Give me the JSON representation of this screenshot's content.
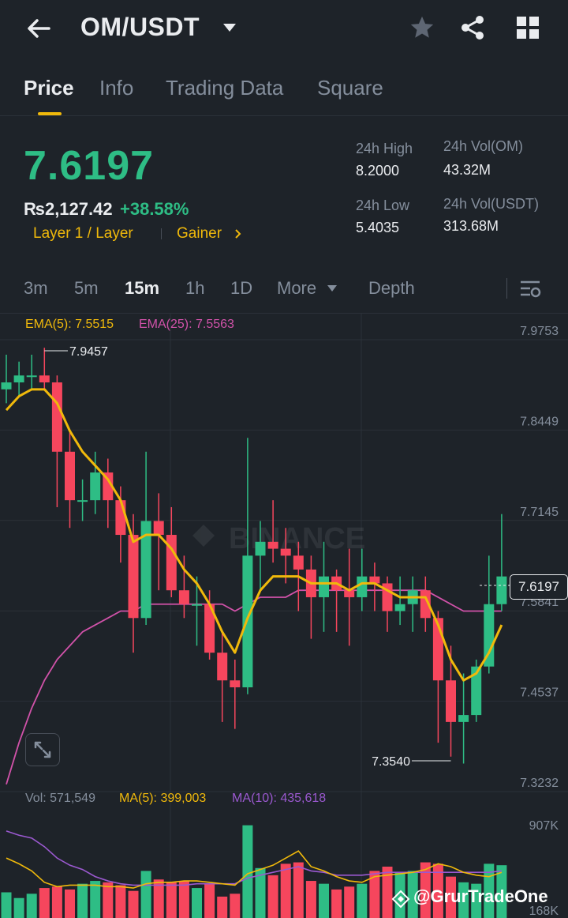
{
  "header": {
    "pair": "OM/USDT"
  },
  "tabs": [
    "Price",
    "Info",
    "Trading Data",
    "Square"
  ],
  "summary": {
    "last_price": "7.6197",
    "fiat_price": "₨2,127.42",
    "change": "+38.58%",
    "tag_1": "Layer 1 / Layer",
    "tag_2": "Gainer",
    "high_label": "24h High",
    "high_value": "8.2000",
    "low_label": "24h Low",
    "low_value": "5.4035",
    "vol_base_label": "24h Vol(OM)",
    "vol_base_value": "43.32M",
    "vol_quote_label": "24h Vol(USDT)",
    "vol_quote_value": "313.68M"
  },
  "timeframes": [
    "3m",
    "5m",
    "15m",
    "1h",
    "1D",
    "More",
    "Depth"
  ],
  "indicators": {
    "ema5": "EMA(5): 7.5515",
    "ema25": "EMA(25): 7.5563",
    "vol": "Vol: 571,549",
    "ma5": "MA(5): 399,003",
    "ma10": "MA(10): 435,618"
  },
  "colors": {
    "up": "#2ebd85",
    "down": "#f6465d",
    "ema5": "#f0b90b",
    "ema25": "#d152a9",
    "ma10": "#9b59d0",
    "accent": "#f0b90b"
  },
  "watermark": "@GrurTradeOne",
  "chart_data": {
    "type": "candlestick",
    "y_axis_ticks": [
      "7.9753",
      "7.8449",
      "7.7145",
      "7.5841",
      "7.4537",
      "7.3232"
    ],
    "volume_axis_ticks": [
      "907K",
      "168K"
    ],
    "high_marker": "7.9457",
    "low_marker": "7.3540",
    "current_price_label": "7.6197",
    "ylim": [
      7.3232,
      7.9753
    ],
    "candles": [
      {
        "o": 7.89,
        "h": 7.94,
        "l": 7.87,
        "c": 7.9
      },
      {
        "o": 7.9,
        "h": 7.93,
        "l": 7.88,
        "c": 7.91
      },
      {
        "o": 7.91,
        "h": 7.94,
        "l": 7.89,
        "c": 7.91
      },
      {
        "o": 7.91,
        "h": 7.95,
        "l": 7.89,
        "c": 7.9
      },
      {
        "o": 7.9,
        "h": 7.91,
        "l": 7.72,
        "c": 7.8
      },
      {
        "o": 7.8,
        "h": 7.83,
        "l": 7.69,
        "c": 7.73
      },
      {
        "o": 7.73,
        "h": 7.76,
        "l": 7.7,
        "c": 7.73
      },
      {
        "o": 7.73,
        "h": 7.8,
        "l": 7.71,
        "c": 7.77
      },
      {
        "o": 7.77,
        "h": 7.79,
        "l": 7.69,
        "c": 7.73
      },
      {
        "o": 7.73,
        "h": 7.75,
        "l": 7.64,
        "c": 7.68
      },
      {
        "o": 7.68,
        "h": 7.71,
        "l": 7.51,
        "c": 7.56
      },
      {
        "o": 7.56,
        "h": 7.8,
        "l": 7.55,
        "c": 7.7
      },
      {
        "o": 7.7,
        "h": 7.74,
        "l": 7.6,
        "c": 7.68
      },
      {
        "o": 7.68,
        "h": 7.72,
        "l": 7.59,
        "c": 7.6
      },
      {
        "o": 7.6,
        "h": 7.65,
        "l": 7.56,
        "c": 7.58
      },
      {
        "o": 7.58,
        "h": 7.62,
        "l": 7.52,
        "c": 7.58
      },
      {
        "o": 7.58,
        "h": 7.6,
        "l": 7.5,
        "c": 7.51
      },
      {
        "o": 7.51,
        "h": 7.54,
        "l": 7.41,
        "c": 7.47
      },
      {
        "o": 7.47,
        "h": 7.5,
        "l": 7.4,
        "c": 7.46
      },
      {
        "o": 7.46,
        "h": 7.82,
        "l": 7.45,
        "c": 7.65
      },
      {
        "o": 7.65,
        "h": 7.7,
        "l": 7.6,
        "c": 7.67
      },
      {
        "o": 7.67,
        "h": 7.73,
        "l": 7.64,
        "c": 7.66
      },
      {
        "o": 7.66,
        "h": 7.69,
        "l": 7.61,
        "c": 7.65
      },
      {
        "o": 7.65,
        "h": 7.67,
        "l": 7.57,
        "c": 7.63
      },
      {
        "o": 7.63,
        "h": 7.65,
        "l": 7.53,
        "c": 7.59
      },
      {
        "o": 7.59,
        "h": 7.67,
        "l": 7.54,
        "c": 7.62
      },
      {
        "o": 7.62,
        "h": 7.63,
        "l": 7.54,
        "c": 7.6
      },
      {
        "o": 7.6,
        "h": 7.66,
        "l": 7.52,
        "c": 7.59
      },
      {
        "o": 7.59,
        "h": 7.66,
        "l": 7.57,
        "c": 7.62
      },
      {
        "o": 7.62,
        "h": 7.64,
        "l": 7.57,
        "c": 7.61
      },
      {
        "o": 7.61,
        "h": 7.62,
        "l": 7.54,
        "c": 7.57
      },
      {
        "o": 7.57,
        "h": 7.62,
        "l": 7.55,
        "c": 7.58
      },
      {
        "o": 7.58,
        "h": 7.62,
        "l": 7.54,
        "c": 7.6
      },
      {
        "o": 7.6,
        "h": 7.62,
        "l": 7.54,
        "c": 7.56
      },
      {
        "o": 7.56,
        "h": 7.57,
        "l": 7.38,
        "c": 7.47
      },
      {
        "o": 7.47,
        "h": 7.52,
        "l": 7.36,
        "c": 7.41
      },
      {
        "o": 7.41,
        "h": 7.48,
        "l": 7.35,
        "c": 7.42
      },
      {
        "o": 7.42,
        "h": 7.5,
        "l": 7.41,
        "c": 7.49
      },
      {
        "o": 7.49,
        "h": 7.65,
        "l": 7.48,
        "c": 7.58
      },
      {
        "o": 7.58,
        "h": 7.71,
        "l": 7.57,
        "c": 7.62
      }
    ],
    "ema5": [
      7.86,
      7.88,
      7.89,
      7.89,
      7.87,
      7.83,
      7.8,
      7.78,
      7.76,
      7.73,
      7.67,
      7.68,
      7.68,
      7.66,
      7.63,
      7.61,
      7.58,
      7.54,
      7.51,
      7.56,
      7.6,
      7.62,
      7.62,
      7.62,
      7.61,
      7.61,
      7.61,
      7.6,
      7.61,
      7.61,
      7.6,
      7.59,
      7.59,
      7.59,
      7.55,
      7.5,
      7.47,
      7.48,
      7.51,
      7.55
    ],
    "ema25": [
      7.32,
      7.38,
      7.43,
      7.47,
      7.5,
      7.52,
      7.54,
      7.55,
      7.56,
      7.57,
      7.57,
      7.58,
      7.58,
      7.58,
      7.58,
      7.58,
      7.58,
      7.58,
      7.57,
      7.58,
      7.59,
      7.59,
      7.59,
      7.6,
      7.6,
      7.6,
      7.6,
      7.6,
      7.6,
      7.6,
      7.6,
      7.6,
      7.6,
      7.6,
      7.59,
      7.58,
      7.57,
      7.57,
      7.57,
      7.57
    ],
    "volumes": [
      180,
      140,
      170,
      210,
      220,
      200,
      240,
      260,
      250,
      230,
      190,
      330,
      270,
      250,
      260,
      210,
      240,
      150,
      170,
      650,
      350,
      300,
      380,
      390,
      260,
      240,
      200,
      220,
      240,
      330,
      360,
      320,
      330,
      390,
      380,
      290,
      250,
      240,
      380,
      370
    ],
    "ma5_vol": [
      420,
      380,
      330,
      250,
      220,
      230,
      230,
      230,
      220,
      220,
      210,
      240,
      250,
      250,
      260,
      260,
      250,
      240,
      230,
      310,
      340,
      370,
      420,
      470,
      360,
      330,
      290,
      260,
      250,
      290,
      300,
      310,
      320,
      340,
      380,
      360,
      320,
      300,
      290,
      320
    ],
    "ma10_vol": [
      610,
      580,
      560,
      500,
      420,
      370,
      340,
      290,
      260,
      240,
      230,
      230,
      230,
      230,
      230,
      240,
      240,
      240,
      240,
      280,
      300,
      320,
      340,
      360,
      330,
      320,
      300,
      300,
      300,
      310,
      320,
      320,
      320,
      320,
      320,
      320,
      320,
      320,
      320,
      330
    ]
  }
}
